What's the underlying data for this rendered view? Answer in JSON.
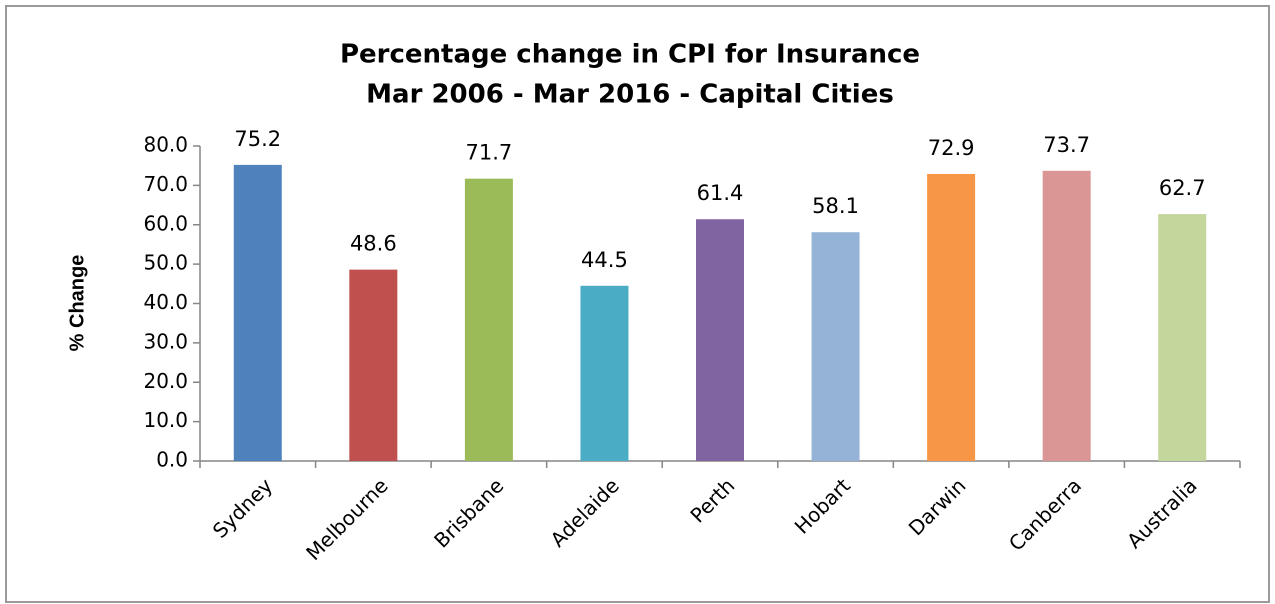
{
  "chart_data": {
    "type": "bar",
    "title": "Percentage change  in CPI for Insurance",
    "subtitle": "Mar 2006 - Mar 2016 - Capital Cities",
    "ylabel": "% Change",
    "categories": [
      "Sydney",
      "Melbourne",
      "Brisbane",
      "Adelaide",
      "Perth",
      "Hobart",
      "Darwin",
      "Canberra",
      "Australia"
    ],
    "values": [
      75.2,
      48.6,
      71.7,
      44.5,
      61.4,
      58.1,
      72.9,
      73.7,
      62.7
    ],
    "colors": [
      "#4f81bd",
      "#c0504d",
      "#9bbb59",
      "#4bacc6",
      "#8064a2",
      "#95b3d7",
      "#f79646",
      "#d99694",
      "#c3d69b"
    ],
    "ylim": [
      0,
      80
    ],
    "yticks": [
      {
        "value": 0,
        "label": "0.0"
      },
      {
        "value": 10,
        "label": "10.0"
      },
      {
        "value": 20,
        "label": "20.0"
      },
      {
        "value": 30,
        "label": "30.0"
      },
      {
        "value": 40,
        "label": "40.0"
      },
      {
        "value": 50,
        "label": "50.0"
      },
      {
        "value": 60,
        "label": "60.0"
      },
      {
        "value": 70,
        "label": "70.0"
      },
      {
        "value": 80,
        "label": "80.0"
      }
    ],
    "grid": false
  }
}
